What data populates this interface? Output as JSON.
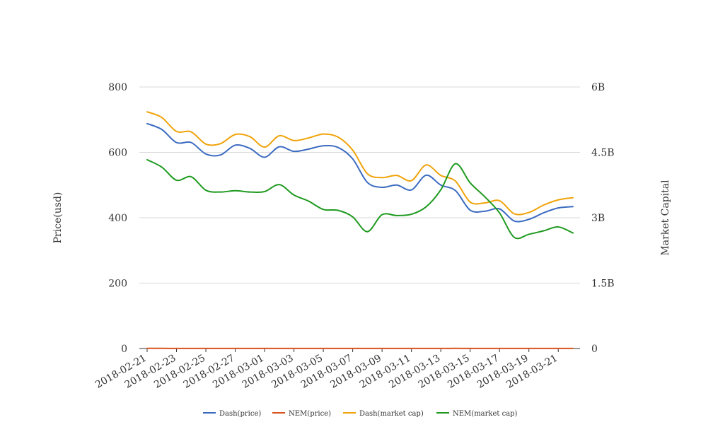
{
  "chart_data": {
    "type": "line",
    "x_axis": {
      "ticks": [
        "2018-02-21",
        "2018-02-23",
        "2018-02-25",
        "2018-02-27",
        "2018-03-01",
        "2018-03-03",
        "2018-03-05",
        "2018-03-07",
        "2018-03-09",
        "2018-03-11",
        "2018-03-13",
        "2018-03-15",
        "2018-03-17",
        "2018-03-19",
        "2018-03-21"
      ]
    },
    "y_left": {
      "label": "Price(usd)",
      "range": [
        0,
        800
      ],
      "ticks": [
        0,
        200,
        400,
        600,
        800
      ],
      "tick_labels": [
        "0",
        "200",
        "400",
        "600",
        "800"
      ]
    },
    "y_right": {
      "label": "Market Capital",
      "range": [
        0,
        6000000000
      ],
      "ticks": [
        0,
        1500000000,
        3000000000,
        4500000000,
        6000000000
      ],
      "tick_labels": [
        "0",
        "1.5B",
        "3B",
        "4.5B",
        "6B"
      ]
    },
    "grid": true,
    "legend_position": "bottom",
    "x": [
      "2018-02-21",
      "2018-02-22",
      "2018-02-23",
      "2018-02-24",
      "2018-02-25",
      "2018-02-26",
      "2018-02-27",
      "2018-02-28",
      "2018-03-01",
      "2018-03-02",
      "2018-03-03",
      "2018-03-04",
      "2018-03-05",
      "2018-03-06",
      "2018-03-07",
      "2018-03-08",
      "2018-03-09",
      "2018-03-10",
      "2018-03-11",
      "2018-03-12",
      "2018-03-13",
      "2018-03-14",
      "2018-03-15",
      "2018-03-16",
      "2018-03-17",
      "2018-03-18",
      "2018-03-19",
      "2018-03-20",
      "2018-03-21",
      "2018-03-22"
    ],
    "series": [
      {
        "name": "Dash(price)",
        "axis": "left",
        "color": "#3b6bc1",
        "values": [
          688,
          670,
          630,
          630,
          595,
          592,
          622,
          612,
          585,
          617,
          603,
          610,
          620,
          615,
          580,
          508,
          493,
          500,
          485,
          530,
          500,
          483,
          423,
          420,
          427,
          390,
          395,
          415,
          430,
          434
        ]
      },
      {
        "name": "NEM(price)",
        "axis": "left",
        "color": "#d9531e",
        "values": [
          0.45,
          0.43,
          0.38,
          0.39,
          0.37,
          0.36,
          0.38,
          0.37,
          0.36,
          0.38,
          0.36,
          0.35,
          0.34,
          0.33,
          0.31,
          0.27,
          0.29,
          0.29,
          0.29,
          0.31,
          0.35,
          0.4,
          0.34,
          0.31,
          0.28,
          0.24,
          0.25,
          0.26,
          0.27,
          0.26
        ]
      },
      {
        "name": "Dash(market cap)",
        "axis": "right",
        "color": "#f0a30a",
        "values": [
          5430000000,
          5300000000,
          4980000000,
          4970000000,
          4690000000,
          4700000000,
          4910000000,
          4860000000,
          4620000000,
          4880000000,
          4770000000,
          4830000000,
          4920000000,
          4850000000,
          4550000000,
          4010000000,
          3920000000,
          3970000000,
          3850000000,
          4210000000,
          3970000000,
          3840000000,
          3360000000,
          3340000000,
          3390000000,
          3090000000,
          3120000000,
          3290000000,
          3410000000,
          3460000000
        ]
      },
      {
        "name": "NEM(market cap)",
        "axis": "right",
        "color": "#1f9a1f",
        "values": [
          4330000000,
          4160000000,
          3860000000,
          3940000000,
          3630000000,
          3590000000,
          3620000000,
          3590000000,
          3600000000,
          3760000000,
          3520000000,
          3380000000,
          3190000000,
          3170000000,
          3020000000,
          2680000000,
          3070000000,
          3050000000,
          3080000000,
          3250000000,
          3640000000,
          4240000000,
          3800000000,
          3480000000,
          3110000000,
          2550000000,
          2620000000,
          2700000000,
          2790000000,
          2650000000
        ]
      }
    ]
  }
}
